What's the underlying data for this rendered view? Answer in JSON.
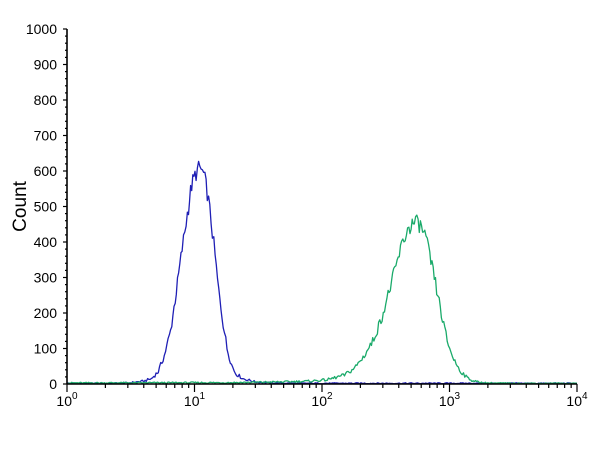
{
  "chart_data": {
    "type": "line",
    "title": "",
    "xlabel": "",
    "ylabel": "Count",
    "x_scale": "log",
    "xlim": [
      1,
      10000
    ],
    "ylim": [
      0,
      1000
    ],
    "x_ticks": [
      {
        "value": 1,
        "base": "10",
        "exp": "0"
      },
      {
        "value": 10,
        "base": "10",
        "exp": "1"
      },
      {
        "value": 100,
        "base": "10",
        "exp": "2"
      },
      {
        "value": 1000,
        "base": "10",
        "exp": "3"
      },
      {
        "value": 10000,
        "base": "10",
        "exp": "4"
      }
    ],
    "y_ticks": [
      "0",
      "100",
      "200",
      "300",
      "400",
      "500",
      "600",
      "700",
      "800",
      "900",
      "1000"
    ],
    "grid": false,
    "legend": "none",
    "series": [
      {
        "color": "#1f1fb5",
        "points": [
          [
            1,
            2
          ],
          [
            2,
            2
          ],
          [
            3,
            3
          ],
          [
            4,
            8
          ],
          [
            4.6,
            15
          ],
          [
            5.2,
            35
          ],
          [
            5.8,
            80
          ],
          [
            6.5,
            150
          ],
          [
            7.2,
            260
          ],
          [
            8,
            380
          ],
          [
            8.8,
            480
          ],
          [
            9.5,
            560
          ],
          [
            10.3,
            595
          ],
          [
            11,
            610
          ],
          [
            11.8,
            590
          ],
          [
            12.6,
            540
          ],
          [
            13.5,
            460
          ],
          [
            14.5,
            360
          ],
          [
            15.5,
            260
          ],
          [
            16.8,
            170
          ],
          [
            18,
            100
          ],
          [
            19.5,
            55
          ],
          [
            21,
            30
          ],
          [
            24,
            15
          ],
          [
            30,
            6
          ],
          [
            40,
            3
          ],
          [
            60,
            2
          ],
          [
            10000,
            2
          ]
        ]
      },
      {
        "color": "#1aaa6a",
        "points": [
          [
            1,
            3
          ],
          [
            20,
            4
          ],
          [
            50,
            6
          ],
          [
            80,
            8
          ],
          [
            110,
            12
          ],
          [
            150,
            25
          ],
          [
            180,
            45
          ],
          [
            210,
            75
          ],
          [
            250,
            120
          ],
          [
            290,
            180
          ],
          [
            330,
            250
          ],
          [
            380,
            330
          ],
          [
            430,
            400
          ],
          [
            480,
            440
          ],
          [
            530,
            455
          ],
          [
            580,
            450
          ],
          [
            640,
            420
          ],
          [
            700,
            360
          ],
          [
            760,
            300
          ],
          [
            830,
            230
          ],
          [
            900,
            165
          ],
          [
            980,
            110
          ],
          [
            1080,
            70
          ],
          [
            1200,
            40
          ],
          [
            1350,
            20
          ],
          [
            1500,
            10
          ],
          [
            1700,
            5
          ],
          [
            2000,
            3
          ],
          [
            3000,
            2
          ],
          [
            10000,
            2
          ]
        ]
      }
    ]
  }
}
